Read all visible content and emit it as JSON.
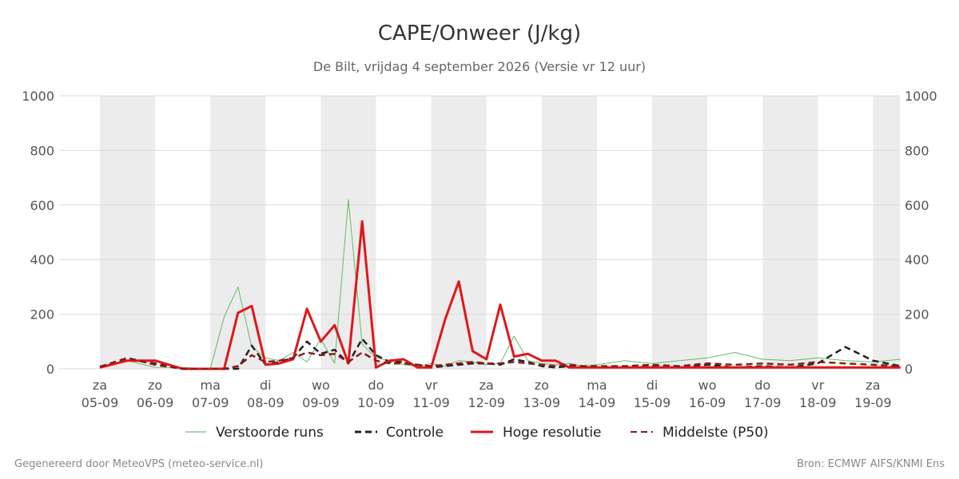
{
  "chart_data": {
    "type": "line",
    "title": "CAPE/Onweer (J/kg)",
    "subtitle": "De Bilt, vrijdag  4 september 2026 (Versie vr 12 uur)",
    "xlabel": "",
    "ylabel": "",
    "ylim": [
      0,
      1000
    ],
    "yticks": [
      0,
      200,
      400,
      600,
      800,
      1000
    ],
    "grid": true,
    "legend_position": "bottom",
    "x": [
      "05-09 00",
      "05-09 12",
      "06-09 00",
      "06-09 12",
      "07-09 00",
      "07-09 06",
      "07-09 12",
      "07-09 18",
      "08-09 00",
      "08-09 06",
      "08-09 12",
      "08-09 18",
      "09-09 00",
      "09-09 06",
      "09-09 12",
      "09-09 18",
      "10-09 00",
      "10-09 06",
      "10-09 12",
      "10-09 18",
      "11-09 00",
      "11-09 06",
      "11-09 12",
      "11-09 18",
      "12-09 00",
      "12-09 06",
      "12-09 12",
      "12-09 18",
      "13-09 00",
      "13-09 06",
      "13-09 12",
      "13-09 18",
      "14-09 00",
      "14-09 12",
      "15-09 00",
      "15-09 12",
      "16-09 00",
      "16-09 12",
      "17-09 00",
      "17-09 12",
      "18-09 00",
      "18-09 12",
      "19-09 00",
      "19-09 12"
    ],
    "x_tick_labels": [
      {
        "day": "za",
        "date": "05-09"
      },
      {
        "day": "zo",
        "date": "06-09"
      },
      {
        "day": "ma",
        "date": "07-09"
      },
      {
        "day": "di",
        "date": "08-09"
      },
      {
        "day": "wo",
        "date": "09-09"
      },
      {
        "day": "do",
        "date": "10-09"
      },
      {
        "day": "vr",
        "date": "11-09"
      },
      {
        "day": "za",
        "date": "12-09"
      },
      {
        "day": "zo",
        "date": "13-09"
      },
      {
        "day": "ma",
        "date": "14-09"
      },
      {
        "day": "di",
        "date": "15-09"
      },
      {
        "day": "wo",
        "date": "16-09"
      },
      {
        "day": "do",
        "date": "17-09"
      },
      {
        "day": "vr",
        "date": "18-09"
      },
      {
        "day": "za",
        "date": "19-09"
      }
    ],
    "series": [
      {
        "name": "Verstoorde runs",
        "style": "thin-line",
        "color": "#4caf50",
        "values": [
          10,
          30,
          5,
          5,
          0,
          190,
          300,
          80,
          40,
          30,
          60,
          25,
          110,
          20,
          620,
          90,
          40,
          30,
          15,
          10,
          20,
          10,
          30,
          25,
          15,
          20,
          120,
          30,
          20,
          15,
          20,
          10,
          15,
          30,
          20,
          30,
          40,
          60,
          35,
          30,
          40,
          30,
          25,
          35
        ]
      },
      {
        "name": "Controle",
        "style": "dashed",
        "color": "#222222",
        "values": [
          5,
          35,
          20,
          0,
          0,
          0,
          0,
          85,
          15,
          25,
          40,
          100,
          55,
          70,
          20,
          110,
          50,
          25,
          25,
          15,
          5,
          10,
          15,
          20,
          20,
          15,
          35,
          25,
          10,
          5,
          10,
          5,
          5,
          5,
          10,
          5,
          15,
          5,
          10,
          5,
          20,
          80,
          30,
          10
        ]
      },
      {
        "name": "Hoge resolutie",
        "style": "thick-line",
        "color": "#e0161a",
        "values": [
          5,
          30,
          30,
          0,
          0,
          0,
          205,
          230,
          15,
          20,
          35,
          220,
          100,
          160,
          20,
          540,
          5,
          30,
          35,
          5,
          5,
          180,
          320,
          65,
          35,
          235,
          45,
          55,
          30,
          30,
          5,
          5,
          5,
          5,
          5,
          5,
          5,
          5,
          5,
          5,
          5,
          5,
          5,
          5
        ]
      },
      {
        "name": "Middelste (P50)",
        "style": "dashed",
        "color": "#8b1a1a",
        "values": [
          8,
          40,
          15,
          0,
          0,
          0,
          10,
          50,
          25,
          30,
          40,
          60,
          50,
          55,
          25,
          60,
          30,
          20,
          20,
          15,
          10,
          15,
          20,
          25,
          20,
          20,
          25,
          20,
          15,
          10,
          15,
          10,
          10,
          10,
          15,
          10,
          20,
          15,
          20,
          15,
          25,
          20,
          15,
          10
        ]
      }
    ]
  },
  "legend": {
    "items": [
      {
        "label": "Verstoorde runs"
      },
      {
        "label": "Controle"
      },
      {
        "label": "Hoge resolutie"
      },
      {
        "label": "Middelste (P50)"
      }
    ]
  },
  "footer": {
    "left": "Gegenereerd door MeteoVPS (meteo-service.nl)",
    "right": "Bron: ECMWF AIFS/KNMI Ens"
  },
  "colors": {
    "shading": "#ececec",
    "grid": "#d9d9d9",
    "ensemble": "#4caf50",
    "control": "#222222",
    "hires": "#e0161a",
    "median": "#8b1a1a"
  }
}
